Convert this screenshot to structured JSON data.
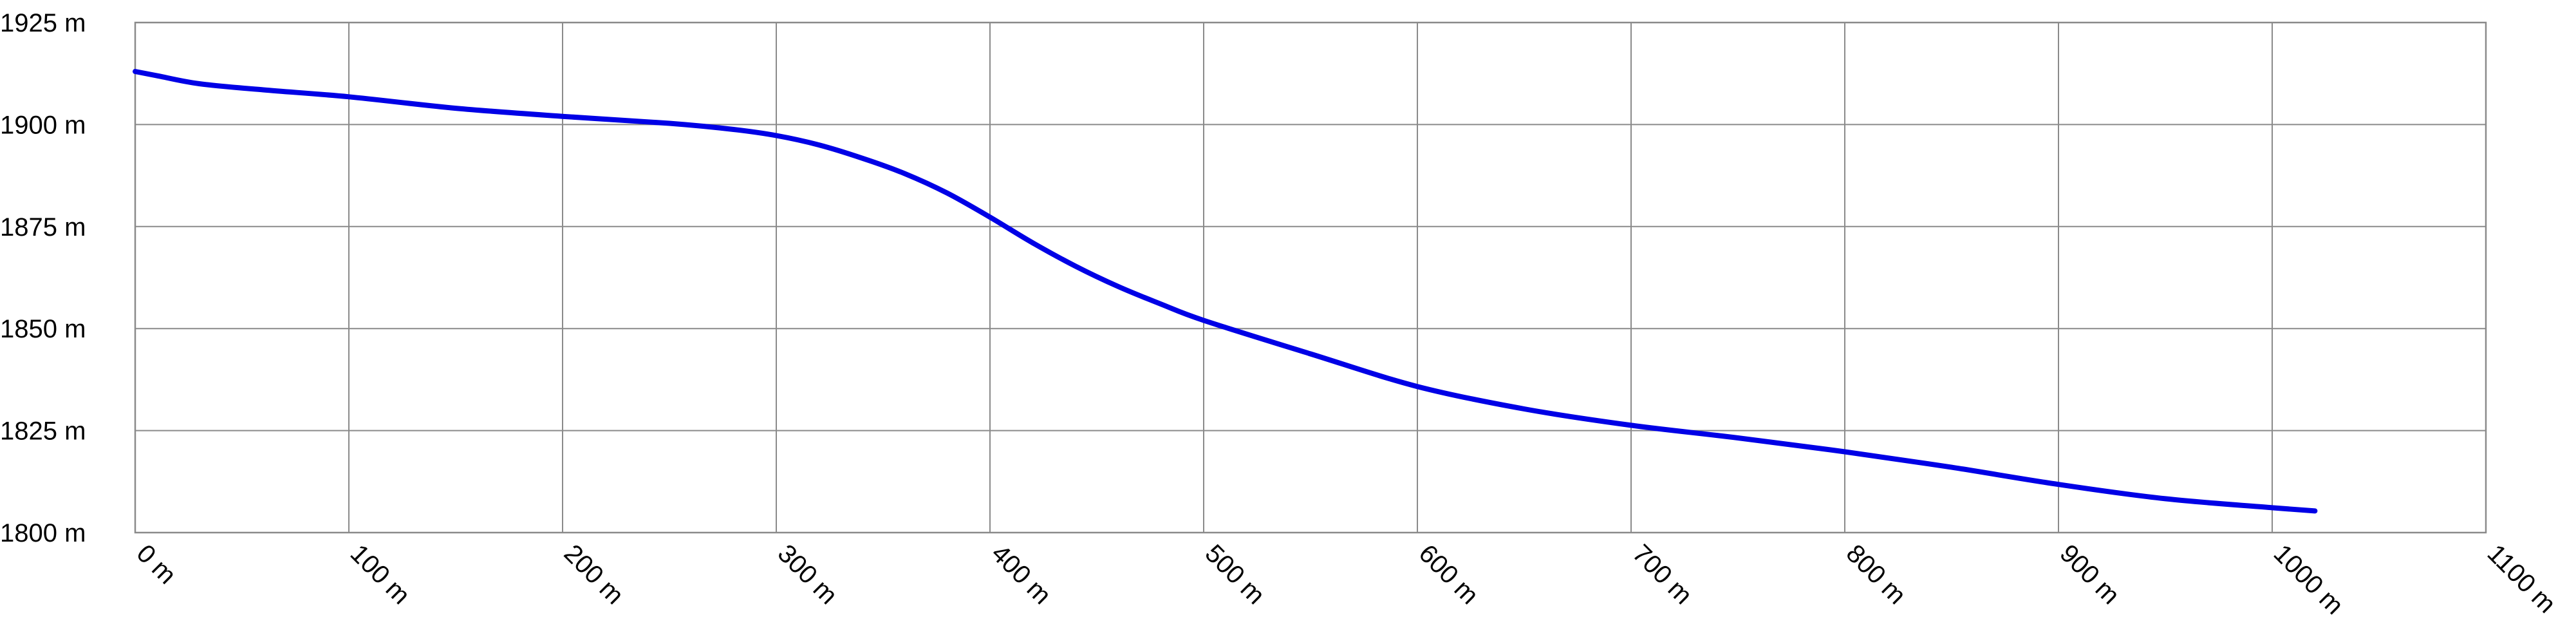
{
  "chart_data": {
    "type": "line",
    "title": "",
    "xlabel": "",
    "ylabel": "",
    "xlim": [
      0,
      1100
    ],
    "ylim": [
      1800,
      1925
    ],
    "grid": true,
    "line_color": "#0000e6",
    "x_ticks": [
      {
        "value": 0,
        "label": "0 m"
      },
      {
        "value": 100,
        "label": "100 m"
      },
      {
        "value": 200,
        "label": "200 m"
      },
      {
        "value": 300,
        "label": "300 m"
      },
      {
        "value": 400,
        "label": "400 m"
      },
      {
        "value": 500,
        "label": "500 m"
      },
      {
        "value": 600,
        "label": "600 m"
      },
      {
        "value": 700,
        "label": "700 m"
      },
      {
        "value": 800,
        "label": "800 m"
      },
      {
        "value": 900,
        "label": "900 m"
      },
      {
        "value": 1000,
        "label": "1000 m"
      },
      {
        "value": 1100,
        "label": "1100 m"
      }
    ],
    "y_ticks": [
      {
        "value": 1925,
        "label": "1925 m"
      },
      {
        "value": 1900,
        "label": "1900 m"
      },
      {
        "value": 1875,
        "label": "1875 m"
      },
      {
        "value": 1850,
        "label": "1850 m"
      },
      {
        "value": 1825,
        "label": "1825 m"
      },
      {
        "value": 1800,
        "label": "1800 m"
      }
    ],
    "series": [
      {
        "x": [
          0,
          10,
          30,
          60,
          100,
          150,
          200,
          250,
          280,
          300,
          320,
          340,
          360,
          380,
          400,
          420,
          440,
          460,
          480,
          500,
          550,
          600,
          650,
          700,
          750,
          800,
          850,
          900,
          950,
          1000,
          1020
        ],
        "y": [
          1913,
          1912,
          1910,
          1908.5,
          1906.8,
          1904,
          1902,
          1900.3,
          1898.8,
          1897.3,
          1895,
          1891.8,
          1888,
          1883.2,
          1877.3,
          1871,
          1865.3,
          1860.3,
          1856,
          1852,
          1843.8,
          1835.8,
          1830.3,
          1826.3,
          1823.2,
          1819.8,
          1816,
          1811.8,
          1808.3,
          1806.1,
          1805.3
        ]
      }
    ]
  }
}
